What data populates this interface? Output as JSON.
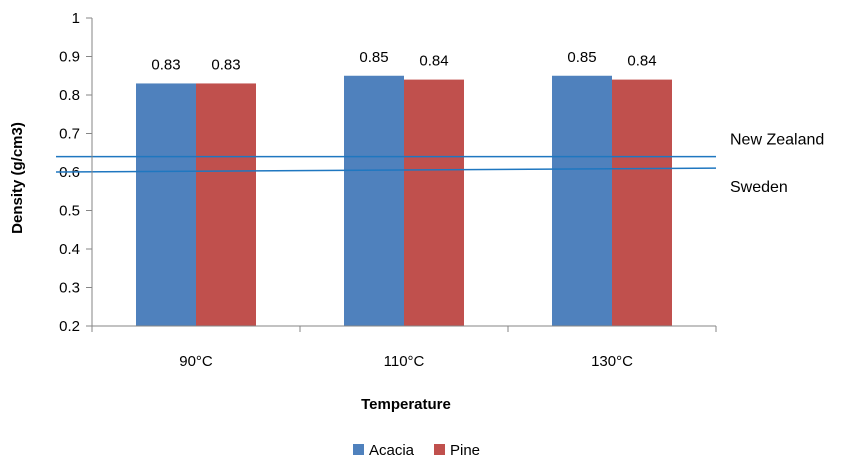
{
  "chart_data": {
    "type": "bar",
    "title": "",
    "xlabel": "Temperature",
    "ylabel": "Density (g/cm3)",
    "categories": [
      "90°C",
      "110°C",
      "130°C"
    ],
    "series": [
      {
        "name": "Acacia",
        "color": "#4f81bd",
        "values": [
          0.83,
          0.85,
          0.85
        ],
        "labels": [
          "0.83",
          "0.85",
          "0.85"
        ]
      },
      {
        "name": "Pine",
        "color": "#c0504d",
        "values": [
          0.83,
          0.84,
          0.84
        ],
        "labels": [
          "0.83",
          "0.84",
          "0.84"
        ]
      }
    ],
    "ylim": [
      0.2,
      1
    ],
    "yticks": [
      "0.2",
      "0.3",
      "0.4",
      "0.5",
      "0.6",
      "0.7",
      "0.8",
      "0.9",
      "1"
    ],
    "grid": false,
    "legend_position": "bottom",
    "reference_lines": [
      {
        "name": "New Zealand",
        "start": 0.64,
        "end": 0.64,
        "color": "#1f77c0"
      },
      {
        "name": "Sweden",
        "start": 0.6,
        "end": 0.61,
        "color": "#1f77c0"
      }
    ]
  }
}
